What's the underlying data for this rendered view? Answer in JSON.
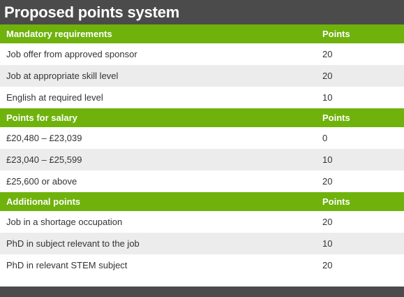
{
  "title": "Proposed points system",
  "sections": [
    {
      "header": {
        "label": "Mandatory requirements",
        "points_label": "Points"
      },
      "rows": [
        {
          "label": "Job offer from approved sponsor",
          "points": "20"
        },
        {
          "label": "Job at appropriate skill level",
          "points": "20"
        },
        {
          "label": "English at required level",
          "points": "10"
        }
      ]
    },
    {
      "header": {
        "label": "Points for salary",
        "points_label": "Points"
      },
      "rows": [
        {
          "label": "£20,480 – £23,039",
          "points": "0"
        },
        {
          "label": "£23,040 – £25,599",
          "points": "10"
        },
        {
          "label": "£25,600 or above",
          "points": "20"
        }
      ]
    },
    {
      "header": {
        "label": "Additional points",
        "points_label": "Points"
      },
      "rows": [
        {
          "label": "Job in a shortage occupation",
          "points": "20"
        },
        {
          "label": "PhD in subject relevant to the job",
          "points": "10"
        },
        {
          "label": "PhD in relevant STEM subject",
          "points": "20"
        }
      ]
    }
  ],
  "colors": {
    "title_bg": "#4b4b4b",
    "section_bg": "#6fb20c",
    "row_alt_bg": "#ececec"
  }
}
